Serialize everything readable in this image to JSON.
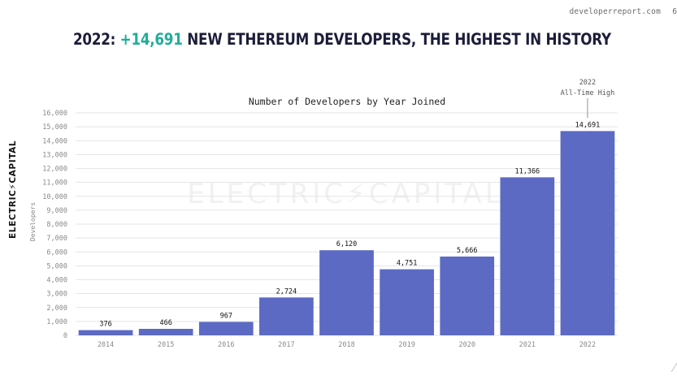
{
  "header": {
    "site_url": "developerreport.com",
    "page_number": "6",
    "headline_prefix": "2022: ",
    "headline_accent": "+14,691",
    "headline_rest": " NEW ETHEREUM DEVELOPERS, THE HIGHEST IN HISTORY"
  },
  "brand": {
    "logo_text": "ELECTRIC⚡CAPITAL",
    "watermark_text": "ELECTRIC⚡CAPITAL"
  },
  "colors": {
    "bar": "#5c6ac4",
    "accent": "#1fae98",
    "headline": "#1b1d3a"
  },
  "chart_data": {
    "type": "bar",
    "title": "Number of Developers by Year Joined",
    "xlabel": "",
    "ylabel": "Developers",
    "categories": [
      "2014",
      "2015",
      "2016",
      "2017",
      "2018",
      "2019",
      "2020",
      "2021",
      "2022"
    ],
    "values": [
      376,
      466,
      967,
      2724,
      6120,
      4751,
      5666,
      11366,
      14691
    ],
    "value_labels": [
      "376",
      "466",
      "967",
      "2,724",
      "6,120",
      "4,751",
      "5,666",
      "11,366",
      "14,691"
    ],
    "ylim": [
      0,
      16000
    ],
    "yticks": [
      0,
      1000,
      2000,
      3000,
      4000,
      5000,
      6000,
      7000,
      8000,
      9000,
      10000,
      11000,
      12000,
      13000,
      14000,
      15000,
      16000
    ],
    "ytick_labels": [
      "0",
      "1,000",
      "2,000",
      "3,000",
      "4,000",
      "5,000",
      "6,000",
      "7,000",
      "8,000",
      "9,000",
      "10,000",
      "11,000",
      "12,000",
      "13,000",
      "14,000",
      "15,000",
      "16,000"
    ],
    "grid": true,
    "annotation": {
      "category": "2022",
      "line1": "2022",
      "line2": "All-Time High"
    }
  }
}
